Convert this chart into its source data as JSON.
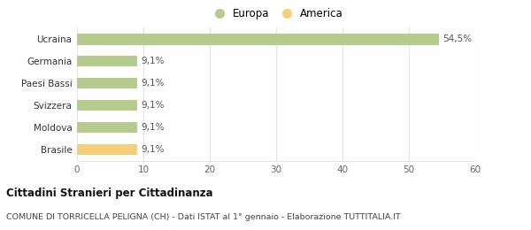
{
  "categories": [
    "Brasile",
    "Moldova",
    "Svizzera",
    "Paesi Bassi",
    "Germania",
    "Ucraina"
  ],
  "values": [
    9.1,
    9.1,
    9.1,
    9.1,
    9.1,
    54.5
  ],
  "bar_colors": [
    "#f5d07a",
    "#b5cc8e",
    "#b5cc8e",
    "#b5cc8e",
    "#b5cc8e",
    "#b5cc8e"
  ],
  "labels": [
    "9,1%",
    "9,1%",
    "9,1%",
    "9,1%",
    "9,1%",
    "54,5%"
  ],
  "legend": [
    {
      "label": "Europa",
      "color": "#b5cc8e"
    },
    {
      "label": "America",
      "color": "#f5d07a"
    }
  ],
  "xlim": [
    0,
    60
  ],
  "xticks": [
    0,
    10,
    20,
    30,
    40,
    50,
    60
  ],
  "title_bold": "Cittadini Stranieri per Cittadinanza",
  "subtitle": "COMUNE DI TORRICELLA PELIGNA (CH) - Dati ISTAT al 1° gennaio - Elaborazione TUTTITALIA.IT",
  "background_color": "#ffffff",
  "grid_color": "#e5e5e5",
  "bar_height": 0.5
}
